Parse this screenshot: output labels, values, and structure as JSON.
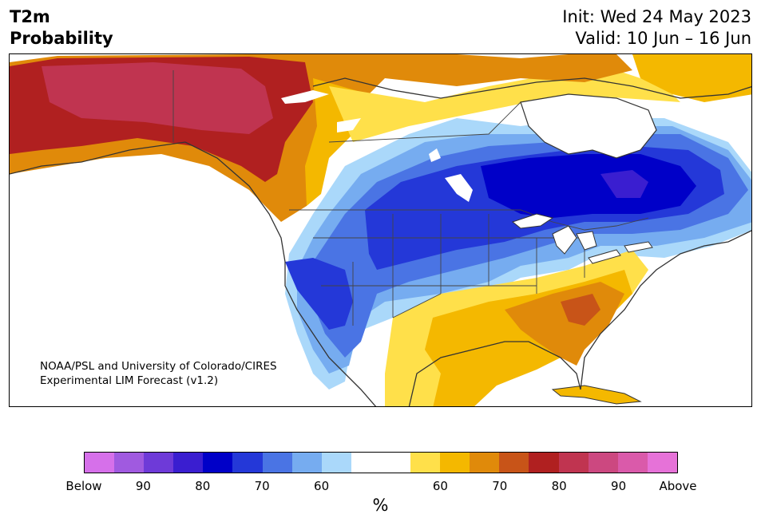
{
  "title": {
    "line1": "T2m",
    "line2": "Probability"
  },
  "init": "Init: Wed 24 May 2023",
  "valid": "Valid: 10 Jun – 16 Jun",
  "credit": {
    "line1": "NOAA/PSL and University of Colorado/CIRES",
    "line2": "Experimental LIM Forecast (v1.2)"
  },
  "colorbar": {
    "colors": [
      "#d670ea",
      "#a05ae0",
      "#6e3ad8",
      "#3a1ed0",
      "#0000c8",
      "#2438d8",
      "#4a74e4",
      "#76acf0",
      "#aad8fa",
      "#ffffff",
      "#ffffff",
      "#ffe04a",
      "#f4b800",
      "#e08a0a",
      "#c85418",
      "#b02020",
      "#c03450",
      "#cc4880",
      "#da5aaa",
      "#e672d8"
    ],
    "ticks": [
      "Below",
      "90",
      "80",
      "70",
      "60",
      "60",
      "70",
      "80",
      "90",
      "Above"
    ],
    "unit": "%"
  }
}
